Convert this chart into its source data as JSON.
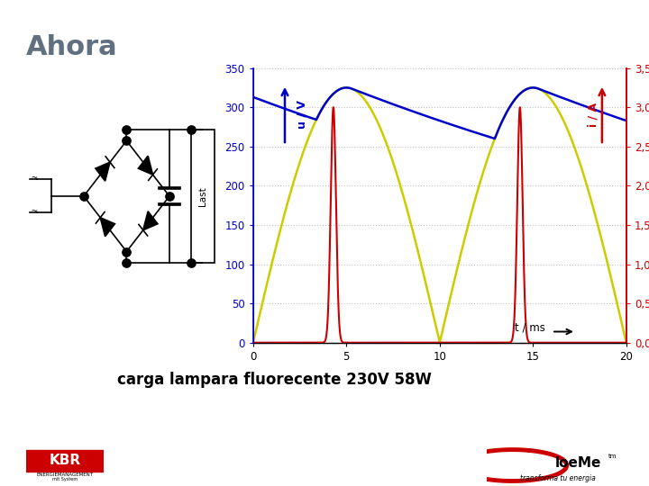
{
  "title": "Ahora",
  "title_color": "#607080",
  "title_fontsize": 22,
  "subtitle": "carga lampara fluorecente 230V 58W",
  "subtitle_fontsize": 12,
  "bg_color": "#ffffff",
  "left_ylim": [
    0,
    350
  ],
  "right_ylim": [
    0,
    3.5
  ],
  "xlim": [
    0,
    20
  ],
  "left_yticks": [
    0,
    50,
    100,
    150,
    200,
    250,
    300,
    350
  ],
  "right_yticks": [
    0.0,
    0.5,
    1.0,
    1.5,
    2.0,
    2.5,
    3.0,
    3.5
  ],
  "xticks": [
    0,
    5,
    10,
    15,
    20
  ],
  "voltage_color": "#0000CC",
  "rectified_color": "#CCCC00",
  "current_color": "#CC0000",
  "footer_bar_color": "#CC0000",
  "left_axis_color": "#0000CC",
  "right_axis_color": "#CC0000"
}
